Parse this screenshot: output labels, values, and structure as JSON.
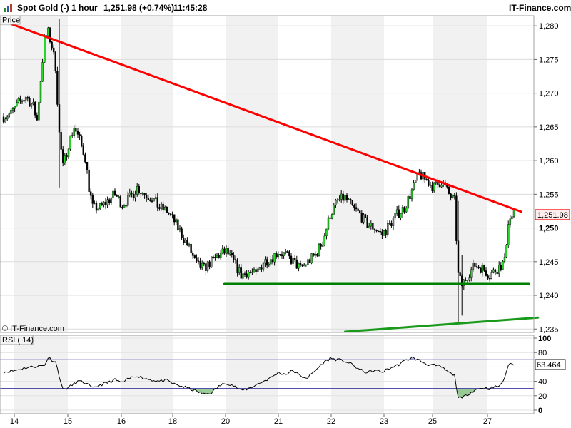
{
  "header": {
    "instrument": "Spot Gold (-)",
    "timeframe": "1 hour",
    "quote": "1,251.98 (+0.74%)",
    "time": "11:45:28",
    "brand": "IT-Finance.com"
  },
  "chart_data": [
    {
      "type": "candlestick",
      "panel_label": "Price",
      "watermark": "© IT-Finance.com",
      "y_ticks": [
        "1,280",
        "1,275",
        "1,270",
        "1,265",
        "1,260",
        "1,255",
        "1,250",
        "1,245",
        "1,240",
        "1,235"
      ],
      "y_tick_values": [
        1280,
        1275,
        1270,
        1265,
        1260,
        1255,
        1250,
        1245,
        1240,
        1235
      ],
      "ylim": [
        1234.5,
        1281.5
      ],
      "current_price": 1251.98,
      "current_price_label": "1,251.98",
      "bold_tick": "1,250",
      "x_ticks": [
        "14",
        "15",
        "16",
        "18",
        "19",
        "20",
        "21",
        "22",
        "23",
        "25",
        "26",
        "27"
      ],
      "close_path": [
        [
          0,
          1266.5
        ],
        [
          4,
          1267
        ],
        [
          8,
          1268.5
        ],
        [
          12,
          1269.5
        ],
        [
          16,
          1268
        ],
        [
          18,
          1266
        ],
        [
          20,
          1272
        ],
        [
          22,
          1278
        ],
        [
          24,
          1279
        ],
        [
          26,
          1277
        ],
        [
          28,
          1274
        ],
        [
          30,
          1264
        ],
        [
          32,
          1259
        ],
        [
          35,
          1262.5
        ],
        [
          38,
          1265
        ],
        [
          41,
          1263
        ],
        [
          44,
          1260.5
        ],
        [
          46,
          1256
        ],
        [
          48,
          1253
        ],
        [
          52,
          1253
        ],
        [
          56,
          1254
        ],
        [
          60,
          1255
        ],
        [
          64,
          1253.5
        ],
        [
          68,
          1254.5
        ],
        [
          72,
          1256
        ],
        [
          76,
          1255
        ],
        [
          80,
          1254.5
        ],
        [
          84,
          1253
        ],
        [
          88,
          1252.5
        ],
        [
          92,
          1251
        ],
        [
          96,
          1249
        ],
        [
          100,
          1247
        ],
        [
          104,
          1244.5
        ],
        [
          108,
          1244
        ],
        [
          112,
          1245
        ],
        [
          116,
          1246
        ],
        [
          120,
          1246.5
        ],
        [
          124,
          1245
        ],
        [
          128,
          1243
        ],
        [
          132,
          1243.5
        ],
        [
          136,
          1243
        ],
        [
          140,
          1245
        ],
        [
          144,
          1245.5
        ],
        [
          148,
          1246.5
        ],
        [
          152,
          1246
        ],
        [
          156,
          1245
        ],
        [
          160,
          1244
        ],
        [
          164,
          1245
        ],
        [
          168,
          1246
        ],
        [
          172,
          1248
        ],
        [
          176,
          1252
        ],
        [
          180,
          1254
        ],
        [
          184,
          1254.5
        ],
        [
          188,
          1253
        ],
        [
          192,
          1252
        ],
        [
          196,
          1250.5
        ],
        [
          200,
          1250
        ],
        [
          204,
          1249
        ],
        [
          208,
          1250.5
        ],
        [
          212,
          1252
        ],
        [
          216,
          1253
        ],
        [
          220,
          1255.5
        ],
        [
          224,
          1258
        ],
        [
          228,
          1257
        ],
        [
          232,
          1256
        ],
        [
          236,
          1257
        ],
        [
          240,
          1255
        ],
        [
          243,
          1254
        ],
        [
          245,
          1243
        ],
        [
          247,
          1241.5
        ],
        [
          250,
          1243
        ],
        [
          254,
          1244.5
        ],
        [
          258,
          1244
        ],
        [
          262,
          1243
        ],
        [
          266,
          1244
        ],
        [
          268,
          1244.5
        ],
        [
          270,
          1245
        ],
        [
          272,
          1251
        ],
        [
          275,
          1252
        ]
      ],
      "trendlines": [
        {
          "color": "#ff0000",
          "from": [
            -1,
            1280.8
          ],
          "to": [
            279,
            1252.4
          ]
        },
        {
          "color": "#008000",
          "from": [
            119,
            1241.7
          ],
          "to": [
            283,
            1241.7
          ]
        },
        {
          "color": "#1a9a1a",
          "from": [
            184,
            1234.6
          ],
          "to": [
            288,
            1236.7
          ]
        }
      ],
      "x_domain": [
        -2,
        282
      ]
    },
    {
      "type": "line",
      "panel_label": "RSI ( 14)",
      "y_ticks": [
        "100",
        "80",
        "60",
        "40",
        "20",
        "0"
      ],
      "y_tick_values": [
        100,
        80,
        60,
        40,
        20,
        0
      ],
      "ylim": [
        -5,
        104
      ],
      "overbought": 70,
      "oversold": 30,
      "current_value": 63.464,
      "current_value_label": "63.464",
      "rsi_path": [
        [
          0,
          53
        ],
        [
          6,
          55
        ],
        [
          12,
          59
        ],
        [
          18,
          61
        ],
        [
          22,
          62
        ],
        [
          24,
          73
        ],
        [
          28,
          67
        ],
        [
          32,
          28
        ],
        [
          36,
          33
        ],
        [
          40,
          40
        ],
        [
          44,
          38
        ],
        [
          48,
          30
        ],
        [
          52,
          35
        ],
        [
          56,
          38
        ],
        [
          60,
          42
        ],
        [
          64,
          38
        ],
        [
          68,
          44
        ],
        [
          72,
          48
        ],
        [
          76,
          44
        ],
        [
          80,
          42
        ],
        [
          84,
          40
        ],
        [
          88,
          41
        ],
        [
          92,
          36
        ],
        [
          96,
          33
        ],
        [
          100,
          30
        ],
        [
          104,
          26
        ],
        [
          108,
          22
        ],
        [
          112,
          24
        ],
        [
          116,
          33
        ],
        [
          120,
          38
        ],
        [
          124,
          34
        ],
        [
          128,
          27
        ],
        [
          132,
          30
        ],
        [
          136,
          35
        ],
        [
          140,
          40
        ],
        [
          144,
          45
        ],
        [
          148,
          52
        ],
        [
          152,
          50
        ],
        [
          156,
          55
        ],
        [
          160,
          47
        ],
        [
          164,
          45
        ],
        [
          168,
          55
        ],
        [
          172,
          65
        ],
        [
          176,
          72
        ],
        [
          180,
          70
        ],
        [
          184,
          68
        ],
        [
          188,
          63
        ],
        [
          192,
          56
        ],
        [
          196,
          52
        ],
        [
          200,
          55
        ],
        [
          204,
          53
        ],
        [
          208,
          58
        ],
        [
          212,
          62
        ],
        [
          216,
          68
        ],
        [
          220,
          73
        ],
        [
          224,
          69
        ],
        [
          228,
          64
        ],
        [
          232,
          62
        ],
        [
          236,
          60
        ],
        [
          240,
          52
        ],
        [
          243,
          48
        ],
        [
          245,
          18
        ],
        [
          247,
          16
        ],
        [
          250,
          22
        ],
        [
          254,
          28
        ],
        [
          258,
          31
        ],
        [
          262,
          30
        ],
        [
          266,
          33
        ],
        [
          268,
          35
        ],
        [
          270,
          45
        ],
        [
          272,
          63
        ],
        [
          275,
          64
        ]
      ]
    }
  ]
}
